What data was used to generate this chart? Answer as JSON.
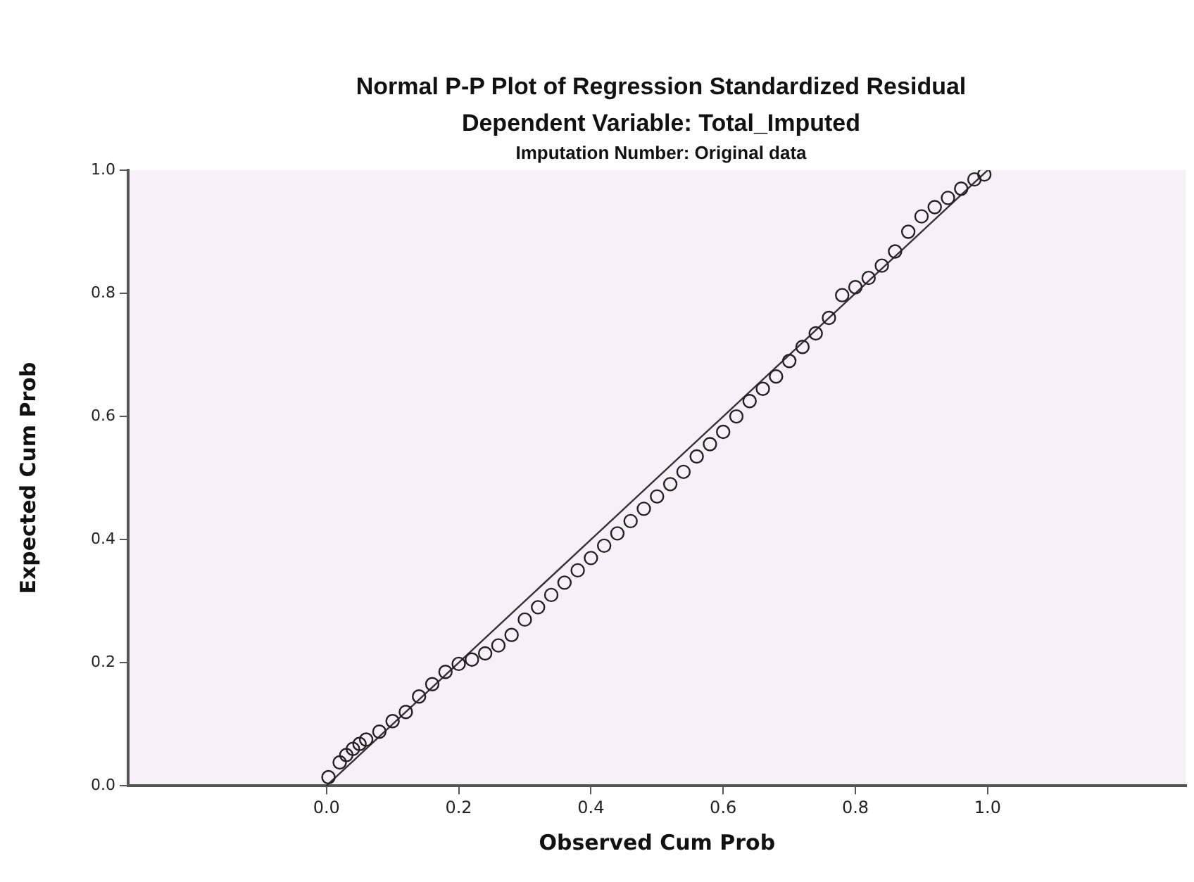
{
  "chart_data": {
    "type": "scatter",
    "title": "Normal P-P Plot of Regression Standardized Residual",
    "subtitle": "Dependent Variable: Total_Imputed",
    "annotations": [
      "Imputation Number: Original data"
    ],
    "xlabel": "Observed Cum Prob",
    "ylabel": "Expected Cum Prob",
    "xlim": [
      -0.3,
      1.3
    ],
    "ylim": [
      0,
      1
    ],
    "xticks": [
      {
        "value": 0,
        "label": "0.0"
      },
      {
        "value": 0.2,
        "label": "0.2"
      },
      {
        "value": 0.4,
        "label": "0.4"
      },
      {
        "value": 0.6,
        "label": "0.6"
      },
      {
        "value": 0.8,
        "label": "0.8"
      },
      {
        "value": 1,
        "label": "1.0"
      }
    ],
    "yticks": [
      {
        "value": 0,
        "label": "0.0"
      },
      {
        "value": 0.2,
        "label": "0.2"
      },
      {
        "value": 0.4,
        "label": "0.4"
      },
      {
        "value": 0.6,
        "label": "0.6"
      },
      {
        "value": 0.8,
        "label": "0.8"
      },
      {
        "value": 1,
        "label": "1.0"
      }
    ],
    "grid": false,
    "legend": false,
    "marker": "circle",
    "series": [
      {
        "color": "#222222",
        "x": [
          0.003,
          0.02,
          0.03,
          0.04,
          0.05,
          0.06,
          0.08,
          0.1,
          0.12,
          0.14,
          0.16,
          0.18,
          0.2,
          0.22,
          0.24,
          0.26,
          0.28,
          0.3,
          0.32,
          0.34,
          0.36,
          0.38,
          0.4,
          0.42,
          0.44,
          0.46,
          0.48,
          0.5,
          0.52,
          0.54,
          0.56,
          0.58,
          0.6,
          0.62,
          0.64,
          0.66,
          0.68,
          0.7,
          0.72,
          0.74,
          0.76,
          0.78,
          0.8,
          0.82,
          0.84,
          0.86,
          0.88,
          0.9,
          0.92,
          0.94,
          0.96,
          0.98,
          0.995
        ],
        "values": [
          0.014,
          0.038,
          0.05,
          0.06,
          0.068,
          0.075,
          0.088,
          0.105,
          0.12,
          0.145,
          0.165,
          0.185,
          0.198,
          0.205,
          0.215,
          0.228,
          0.245,
          0.27,
          0.29,
          0.31,
          0.33,
          0.35,
          0.37,
          0.39,
          0.41,
          0.43,
          0.45,
          0.47,
          0.49,
          0.51,
          0.535,
          0.555,
          0.575,
          0.6,
          0.625,
          0.645,
          0.665,
          0.69,
          0.713,
          0.735,
          0.76,
          0.797,
          0.81,
          0.825,
          0.845,
          0.868,
          0.9,
          0.925,
          0.94,
          0.955,
          0.97,
          0.985,
          0.993
        ]
      },
      {
        "type": "line",
        "color": "#333333",
        "x": [
          0,
          1
        ],
        "values": [
          0,
          1
        ],
        "marker": "none"
      }
    ]
  }
}
